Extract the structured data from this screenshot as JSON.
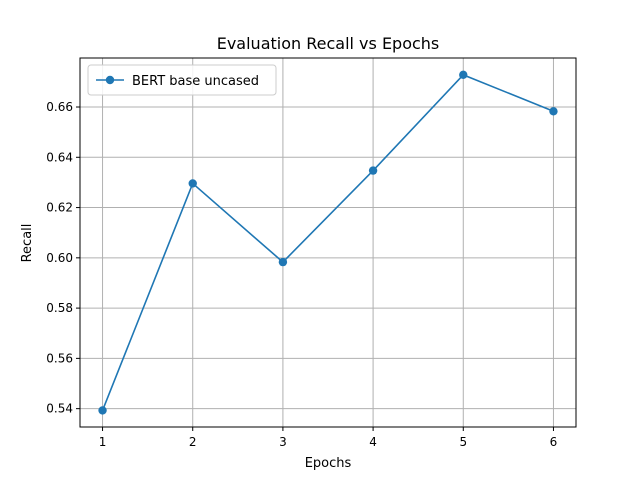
{
  "chart_data": {
    "type": "line",
    "title": "Evaluation Recall vs Epochs",
    "xlabel": "Epochs",
    "ylabel": "Recall",
    "x": [
      1,
      2,
      3,
      4,
      5,
      6
    ],
    "xticks": [
      "1",
      "2",
      "3",
      "4",
      "5",
      "6"
    ],
    "yticks": [
      "0.54",
      "0.56",
      "0.58",
      "0.60",
      "0.62",
      "0.64",
      "0.66"
    ],
    "ytick_values": [
      0.54,
      0.56,
      0.58,
      0.6,
      0.62,
      0.64,
      0.66
    ],
    "xlim": [
      0.75,
      6.25
    ],
    "ylim": [
      0.5327,
      0.6795
    ],
    "grid": true,
    "legend_position": "top-left",
    "series": [
      {
        "name": "BERT base uncased",
        "color": "#1f77b4",
        "marker": "circle",
        "values": [
          0.5393,
          0.6296,
          0.5983,
          0.6347,
          0.6728,
          0.6583
        ]
      }
    ]
  }
}
